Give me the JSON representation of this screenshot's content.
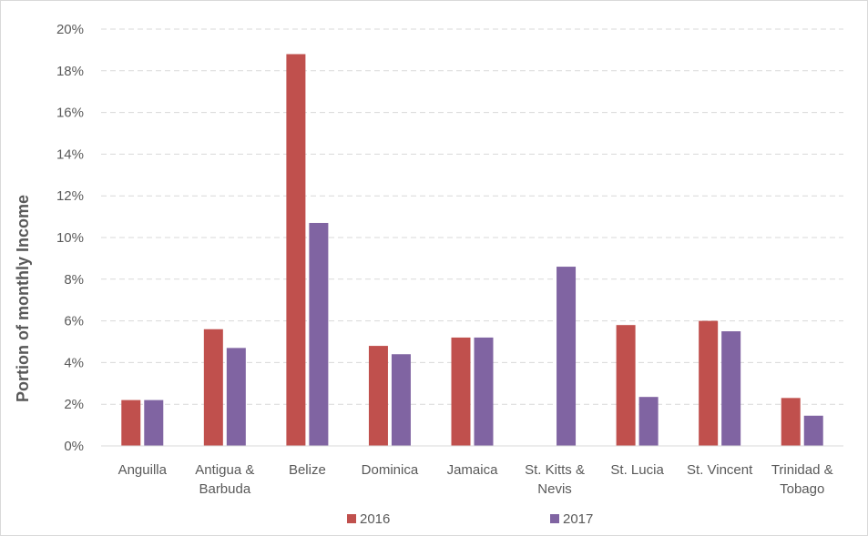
{
  "chart_data": {
    "type": "bar",
    "ylabel": "Portion of monthly Income",
    "ylim": [
      0,
      20
    ],
    "y_ticks": [
      0,
      2,
      4,
      6,
      8,
      10,
      12,
      14,
      16,
      18,
      20
    ],
    "y_tick_labels": [
      "0%",
      "2%",
      "4%",
      "6%",
      "8%",
      "10%",
      "12%",
      "14%",
      "16%",
      "18%",
      "20%"
    ],
    "categories": [
      [
        "Anguilla"
      ],
      [
        "Antigua &",
        "Barbuda"
      ],
      [
        "Belize"
      ],
      [
        "Dominica"
      ],
      [
        "Jamaica"
      ],
      [
        "St. Kitts &",
        "Nevis"
      ],
      [
        "St. Lucia"
      ],
      [
        "St. Vincent"
      ],
      [
        "Trinidad &",
        "Tobago"
      ]
    ],
    "series": [
      {
        "name": "2016",
        "color": "#c0504d",
        "values": [
          2.2,
          5.6,
          18.8,
          4.8,
          5.2,
          null,
          5.8,
          6.0,
          2.3
        ]
      },
      {
        "name": "2017",
        "color": "#8064a2",
        "values": [
          2.2,
          4.7,
          10.7,
          4.4,
          5.2,
          8.6,
          2.35,
          5.5,
          1.45
        ]
      }
    ],
    "grid": true,
    "legend": "bottom"
  }
}
